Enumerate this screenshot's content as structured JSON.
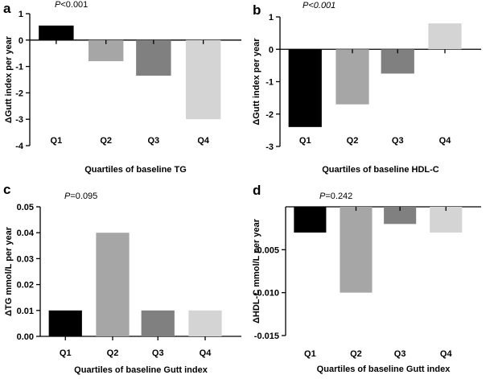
{
  "colors": [
    "#000000",
    "#a6a6a6",
    "#808080",
    "#d4d4d4"
  ],
  "chart_data": [
    {
      "panel": "a",
      "type": "bar",
      "annotation": "P<0.001",
      "annotation_italic_all": false,
      "categories": [
        "Q1",
        "Q2",
        "Q3",
        "Q4"
      ],
      "values": [
        0.55,
        -0.8,
        -1.35,
        -3.0
      ],
      "xlabel": "Quartiles of baseline TG",
      "ylabel": "ΔGutt index per year",
      "ylim": [
        -4,
        1
      ],
      "yticks": [
        1,
        0,
        -1,
        -2,
        -3,
        -4
      ],
      "ytick_labels": [
        "1",
        "0",
        "-1",
        "-2",
        "-3",
        "-4"
      ]
    },
    {
      "panel": "b",
      "type": "bar",
      "annotation": "P<0.001",
      "annotation_italic_all": true,
      "categories": [
        "Q1",
        "Q2",
        "Q3",
        "Q4"
      ],
      "values": [
        -2.4,
        -1.7,
        -0.75,
        0.8
      ],
      "xlabel": "Quartiles of baseline HDL-C",
      "ylabel": "ΔGutt index per year",
      "ylim": [
        -3,
        1
      ],
      "yticks": [
        1,
        0,
        -1,
        -2,
        -3
      ],
      "ytick_labels": [
        "1",
        "0",
        "-1",
        "-2",
        "-3"
      ]
    },
    {
      "panel": "c",
      "type": "bar",
      "annotation": "P=0.095",
      "annotation_italic_all": false,
      "categories": [
        "Q1",
        "Q2",
        "Q3",
        "Q4"
      ],
      "values": [
        0.01,
        0.04,
        0.01,
        0.01
      ],
      "xlabel": "Quartiles of baseline Gutt index",
      "ylabel": "ΔTG mmol/L per year",
      "ylim": [
        0,
        0.05
      ],
      "yticks": [
        0.05,
        0.04,
        0.03,
        0.02,
        0.01,
        0
      ],
      "ytick_labels": [
        "0.05",
        "0.04",
        "0.03",
        "0.02",
        "0.01",
        "0.00"
      ]
    },
    {
      "panel": "d",
      "type": "bar",
      "annotation": "P=0.242",
      "annotation_italic_all": false,
      "categories": [
        "Q1",
        "Q2",
        "Q3",
        "Q4"
      ],
      "values": [
        -0.003,
        -0.01,
        -0.002,
        -0.003
      ],
      "xlabel": "Quartiles of baseline Gutt index",
      "ylabel": "ΔHDL-C mmol/L per year",
      "ylim": [
        -0.015,
        0
      ],
      "yticks": [
        -0.005,
        -0.01,
        -0.015
      ],
      "ytick_labels": [
        "-0.005",
        "-0.010",
        "-0.015"
      ]
    }
  ]
}
